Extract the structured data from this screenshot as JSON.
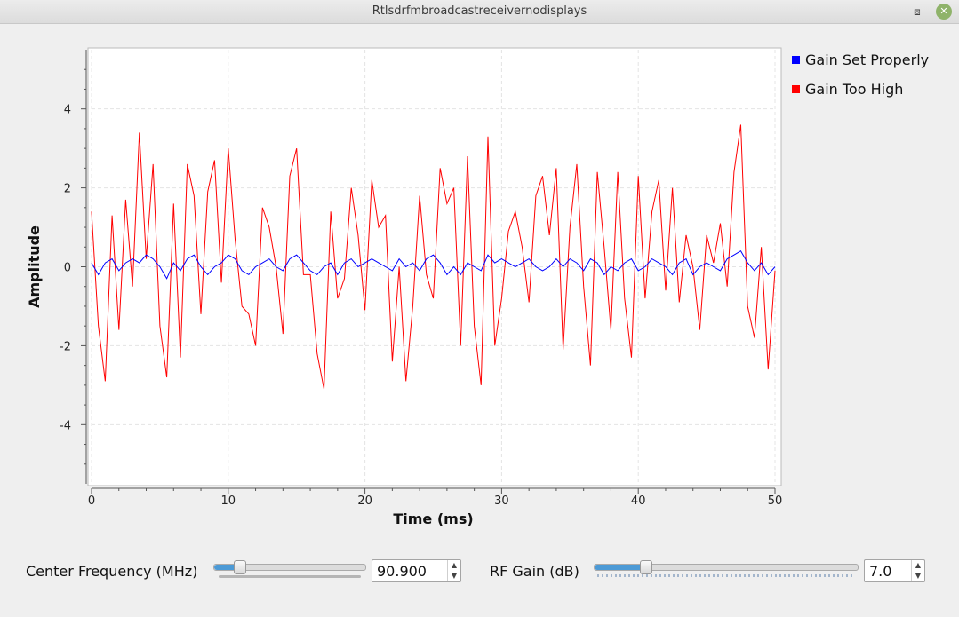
{
  "window": {
    "title": "Rtlsdrfmbroadcastreceivernodisplays"
  },
  "chart_data": {
    "type": "line",
    "xlabel": "Time (ms)",
    "ylabel": "Amplitude",
    "xlim": [
      0,
      50
    ],
    "ylim": [
      -5.5,
      5.5
    ],
    "x_ticks": [
      0,
      10,
      20,
      30,
      40,
      50
    ],
    "y_ticks": [
      4,
      2,
      0,
      -2,
      -4
    ],
    "grid": true,
    "legend_position": "right",
    "x": [
      0,
      0.5,
      1,
      1.5,
      2,
      2.5,
      3,
      3.5,
      4,
      4.5,
      5,
      5.5,
      6,
      6.5,
      7,
      7.5,
      8,
      8.5,
      9,
      9.5,
      10,
      10.5,
      11,
      11.5,
      12,
      12.5,
      13,
      13.5,
      14,
      14.5,
      15,
      15.5,
      16,
      16.5,
      17,
      17.5,
      18,
      18.5,
      19,
      19.5,
      20,
      20.5,
      21,
      21.5,
      22,
      22.5,
      23,
      23.5,
      24,
      24.5,
      25,
      25.5,
      26,
      26.5,
      27,
      27.5,
      28,
      28.5,
      29,
      29.5,
      30,
      30.5,
      31,
      31.5,
      32,
      32.5,
      33,
      33.5,
      34,
      34.5,
      35,
      35.5,
      36,
      36.5,
      37,
      37.5,
      38,
      38.5,
      39,
      39.5,
      40,
      40.5,
      41,
      41.5,
      42,
      42.5,
      43,
      43.5,
      44,
      44.5,
      45,
      45.5,
      46,
      46.5,
      47,
      47.5,
      48,
      48.5,
      49,
      49.5,
      50
    ],
    "series": [
      {
        "name": "Gain Set Properly",
        "color": "#0000ff",
        "values": [
          0.1,
          -0.2,
          0.1,
          0.2,
          -0.1,
          0.1,
          0.2,
          0.1,
          0.3,
          0.2,
          0.0,
          -0.3,
          0.1,
          -0.1,
          0.2,
          0.3,
          0.0,
          -0.2,
          0.0,
          0.1,
          0.3,
          0.2,
          -0.1,
          -0.2,
          0.0,
          0.1,
          0.2,
          0.0,
          -0.1,
          0.2,
          0.3,
          0.1,
          -0.1,
          -0.2,
          0.0,
          0.1,
          -0.2,
          0.1,
          0.2,
          0.0,
          0.1,
          0.2,
          0.1,
          0.0,
          -0.1,
          0.2,
          0.0,
          0.1,
          -0.1,
          0.2,
          0.3,
          0.1,
          -0.2,
          0.0,
          -0.2,
          0.1,
          0.0,
          -0.1,
          0.3,
          0.1,
          0.2,
          0.1,
          0.0,
          0.1,
          0.2,
          0.0,
          -0.1,
          0.0,
          0.2,
          0.0,
          0.2,
          0.1,
          -0.1,
          0.2,
          0.1,
          -0.2,
          0.0,
          -0.1,
          0.1,
          0.2,
          -0.1,
          0.0,
          0.2,
          0.1,
          0.0,
          -0.2,
          0.1,
          0.2,
          -0.2,
          0.0,
          0.1,
          0.0,
          -0.1,
          0.2,
          0.3,
          0.4,
          0.1,
          -0.1,
          0.1,
          -0.2,
          0.0
        ]
      },
      {
        "name": "Gain Too High",
        "color": "#ff0000",
        "values": [
          1.4,
          -1.5,
          -2.9,
          1.3,
          -1.6,
          1.7,
          -0.5,
          3.4,
          0.2,
          2.6,
          -1.5,
          -2.8,
          1.6,
          -2.3,
          2.6,
          1.8,
          -1.2,
          1.9,
          2.7,
          -0.4,
          3.0,
          0.7,
          -1.0,
          -1.2,
          -2.0,
          1.5,
          1.0,
          0.0,
          -1.7,
          2.3,
          3.0,
          -0.2,
          -0.2,
          -2.2,
          -3.1,
          1.4,
          -0.8,
          -0.3,
          2.0,
          0.8,
          -1.1,
          2.2,
          1.0,
          1.3,
          -2.4,
          0.0,
          -2.9,
          -1.0,
          1.8,
          -0.2,
          -0.8,
          2.5,
          1.6,
          2.0,
          -2.0,
          2.8,
          -1.5,
          -3.0,
          3.3,
          -2.0,
          -0.8,
          0.9,
          1.4,
          0.5,
          -0.9,
          1.8,
          2.3,
          0.8,
          2.5,
          -2.1,
          1.0,
          2.6,
          -0.5,
          -2.5,
          2.4,
          0.5,
          -1.6,
          2.4,
          -0.8,
          -2.3,
          2.3,
          -0.8,
          1.4,
          2.2,
          -0.6,
          2.0,
          -0.9,
          0.8,
          0.0,
          -1.6,
          0.8,
          0.1,
          1.1,
          -0.5,
          2.4,
          3.6,
          -1.0,
          -1.8,
          0.5,
          -2.6,
          -0.1
        ]
      }
    ]
  },
  "controls": {
    "center_frequency": {
      "label": "Center Frequency (MHz)",
      "value": "90.900",
      "fraction": 0.16
    },
    "rf_gain": {
      "label": "RF Gain (dB)",
      "value": "7.0",
      "fraction": 0.19
    }
  },
  "icons": {
    "minimize": "minimize-icon",
    "restore": "restore-icon",
    "close": "close-icon",
    "spin_up": "arrow-up-icon",
    "spin_down": "arrow-down-icon"
  }
}
